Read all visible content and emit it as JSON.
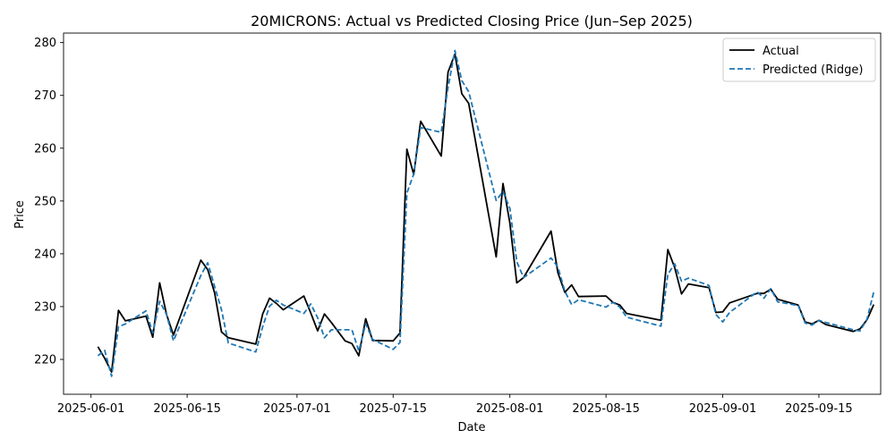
{
  "chart_data": {
    "type": "line",
    "title": "20MICRONS: Actual vs Predicted Closing Price (Jun–Sep 2025)",
    "xlabel": "Date",
    "ylabel": "Price",
    "xlim": [
      "2025-05-28",
      "2025-09-24"
    ],
    "ylim": [
      213.4,
      281.8
    ],
    "x_ticks": [
      "2025-06-01",
      "2025-06-15",
      "2025-07-01",
      "2025-07-15",
      "2025-08-01",
      "2025-08-15",
      "2025-09-01",
      "2025-09-15"
    ],
    "y_ticks": [
      220,
      230,
      240,
      250,
      260,
      270,
      280
    ],
    "grid": false,
    "legend_position": "upper right",
    "series": [
      {
        "name": "Actual",
        "color": "#000000",
        "style": "solid",
        "points": [
          [
            "2025-06-02",
            222.4
          ],
          [
            "2025-06-03",
            220.2
          ],
          [
            "2025-06-04",
            217.6
          ],
          [
            "2025-06-05",
            229.3
          ],
          [
            "2025-06-06",
            227.3
          ],
          [
            "2025-06-09",
            228.2
          ],
          [
            "2025-06-10",
            224.2
          ],
          [
            "2025-06-11",
            234.5
          ],
          [
            "2025-06-12",
            228.5
          ],
          [
            "2025-06-13",
            224.6
          ],
          [
            "2025-06-17",
            238.8
          ],
          [
            "2025-06-18",
            237.0
          ],
          [
            "2025-06-19",
            232.6
          ],
          [
            "2025-06-20",
            225.2
          ],
          [
            "2025-06-21",
            224.1
          ],
          [
            "2025-06-25",
            222.9
          ],
          [
            "2025-06-26",
            228.6
          ],
          [
            "2025-06-27",
            231.6
          ],
          [
            "2025-06-28",
            230.6
          ],
          [
            "2025-06-29",
            229.4
          ],
          [
            "2025-07-02",
            232.0
          ],
          [
            "2025-07-03",
            228.8
          ],
          [
            "2025-07-04",
            225.4
          ],
          [
            "2025-07-05",
            228.6
          ],
          [
            "2025-07-06",
            227.0
          ],
          [
            "2025-07-08",
            223.5
          ],
          [
            "2025-07-09",
            223.0
          ],
          [
            "2025-07-10",
            220.7
          ],
          [
            "2025-07-11",
            227.7
          ],
          [
            "2025-07-12",
            223.6
          ],
          [
            "2025-07-15",
            223.5
          ],
          [
            "2025-07-16",
            225.0
          ],
          [
            "2025-07-17",
            259.8
          ],
          [
            "2025-07-18",
            255.0
          ],
          [
            "2025-07-19",
            265.1
          ],
          [
            "2025-07-22",
            258.5
          ],
          [
            "2025-07-23",
            274.4
          ],
          [
            "2025-07-24",
            277.8
          ],
          [
            "2025-07-25",
            270.3
          ],
          [
            "2025-07-26",
            268.5
          ],
          [
            "2025-07-30",
            239.4
          ],
          [
            "2025-07-31",
            253.3
          ],
          [
            "2025-08-01",
            245.8
          ],
          [
            "2025-08-02",
            234.5
          ],
          [
            "2025-08-03",
            235.5
          ],
          [
            "2025-08-07",
            244.3
          ],
          [
            "2025-08-08",
            236.4
          ],
          [
            "2025-08-09",
            232.7
          ],
          [
            "2025-08-10",
            234.1
          ],
          [
            "2025-08-11",
            231.9
          ],
          [
            "2025-08-15",
            232.0
          ],
          [
            "2025-08-16",
            230.8
          ],
          [
            "2025-08-17",
            230.3
          ],
          [
            "2025-08-18",
            228.7
          ],
          [
            "2025-08-23",
            227.4
          ],
          [
            "2025-08-24",
            240.8
          ],
          [
            "2025-08-25",
            237.4
          ],
          [
            "2025-08-26",
            232.4
          ],
          [
            "2025-08-27",
            234.3
          ],
          [
            "2025-08-30",
            233.6
          ],
          [
            "2025-08-31",
            228.9
          ],
          [
            "2025-09-01",
            229.0
          ],
          [
            "2025-09-02",
            230.7
          ],
          [
            "2025-09-06",
            232.5
          ],
          [
            "2025-09-07",
            232.5
          ],
          [
            "2025-09-08",
            233.3
          ],
          [
            "2025-09-09",
            231.4
          ],
          [
            "2025-09-12",
            230.3
          ],
          [
            "2025-09-13",
            227.1
          ],
          [
            "2025-09-14",
            226.7
          ],
          [
            "2025-09-15",
            227.4
          ],
          [
            "2025-09-16",
            226.6
          ],
          [
            "2025-09-20",
            225.3
          ],
          [
            "2025-09-21",
            225.8
          ],
          [
            "2025-09-22",
            227.5
          ],
          [
            "2025-09-23",
            230.4
          ]
        ]
      },
      {
        "name": "Predicted (Ridge)",
        "color": "#1f77b4",
        "style": "dashed",
        "points": [
          [
            "2025-06-02",
            220.7
          ],
          [
            "2025-06-03",
            221.7
          ],
          [
            "2025-06-04",
            216.8
          ],
          [
            "2025-06-05",
            226.2
          ],
          [
            "2025-06-06",
            226.7
          ],
          [
            "2025-06-09",
            229.2
          ],
          [
            "2025-06-10",
            225.0
          ],
          [
            "2025-06-11",
            231.0
          ],
          [
            "2025-06-12",
            228.5
          ],
          [
            "2025-06-13",
            223.5
          ],
          [
            "2025-06-17",
            235.9
          ],
          [
            "2025-06-18",
            238.3
          ],
          [
            "2025-06-19",
            233.8
          ],
          [
            "2025-06-20",
            229.4
          ],
          [
            "2025-06-21",
            223.1
          ],
          [
            "2025-06-25",
            221.4
          ],
          [
            "2025-06-26",
            226.2
          ],
          [
            "2025-06-27",
            230.1
          ],
          [
            "2025-06-28",
            231.2
          ],
          [
            "2025-06-29",
            230.3
          ],
          [
            "2025-07-02",
            228.7
          ],
          [
            "2025-07-03",
            230.5
          ],
          [
            "2025-07-04",
            227.9
          ],
          [
            "2025-07-05",
            224.1
          ],
          [
            "2025-07-06",
            225.6
          ],
          [
            "2025-07-08",
            225.6
          ],
          [
            "2025-07-09",
            225.6
          ],
          [
            "2025-07-10",
            221.6
          ],
          [
            "2025-07-11",
            226.7
          ],
          [
            "2025-07-12",
            223.8
          ],
          [
            "2025-07-15",
            221.9
          ],
          [
            "2025-07-16",
            223.2
          ],
          [
            "2025-07-17",
            251.5
          ],
          [
            "2025-07-18",
            255.1
          ],
          [
            "2025-07-19",
            263.9
          ],
          [
            "2025-07-22",
            263.0
          ],
          [
            "2025-07-23",
            271.5
          ],
          [
            "2025-07-24",
            278.5
          ],
          [
            "2025-07-25",
            272.8
          ],
          [
            "2025-07-26",
            270.7
          ],
          [
            "2025-07-30",
            250.1
          ],
          [
            "2025-07-31",
            251.8
          ],
          [
            "2025-08-01",
            248.6
          ],
          [
            "2025-08-02",
            238.5
          ],
          [
            "2025-08-03",
            235.5
          ],
          [
            "2025-08-07",
            239.2
          ],
          [
            "2025-08-08",
            237.5
          ],
          [
            "2025-08-09",
            232.9
          ],
          [
            "2025-08-10",
            230.4
          ],
          [
            "2025-08-11",
            231.3
          ],
          [
            "2025-08-15",
            229.9
          ],
          [
            "2025-08-16",
            230.8
          ],
          [
            "2025-08-17",
            229.9
          ],
          [
            "2025-08-18",
            228.0
          ],
          [
            "2025-08-23",
            226.3
          ],
          [
            "2025-08-24",
            236.1
          ],
          [
            "2025-08-25",
            238.1
          ],
          [
            "2025-08-26",
            234.8
          ],
          [
            "2025-08-27",
            235.4
          ],
          [
            "2025-08-30",
            234.0
          ],
          [
            "2025-08-31",
            228.5
          ],
          [
            "2025-09-01",
            227.1
          ],
          [
            "2025-09-02",
            228.9
          ],
          [
            "2025-09-06",
            232.8
          ],
          [
            "2025-09-07",
            231.6
          ],
          [
            "2025-09-08",
            233.4
          ],
          [
            "2025-09-09",
            230.9
          ],
          [
            "2025-09-12",
            230.2
          ],
          [
            "2025-09-13",
            226.9
          ],
          [
            "2025-09-14",
            226.5
          ],
          [
            "2025-09-15",
            227.4
          ],
          [
            "2025-09-16",
            227.0
          ],
          [
            "2025-09-20",
            225.6
          ],
          [
            "2025-09-21",
            225.4
          ],
          [
            "2025-09-22",
            227.6
          ],
          [
            "2025-09-23",
            232.8
          ]
        ]
      }
    ]
  }
}
